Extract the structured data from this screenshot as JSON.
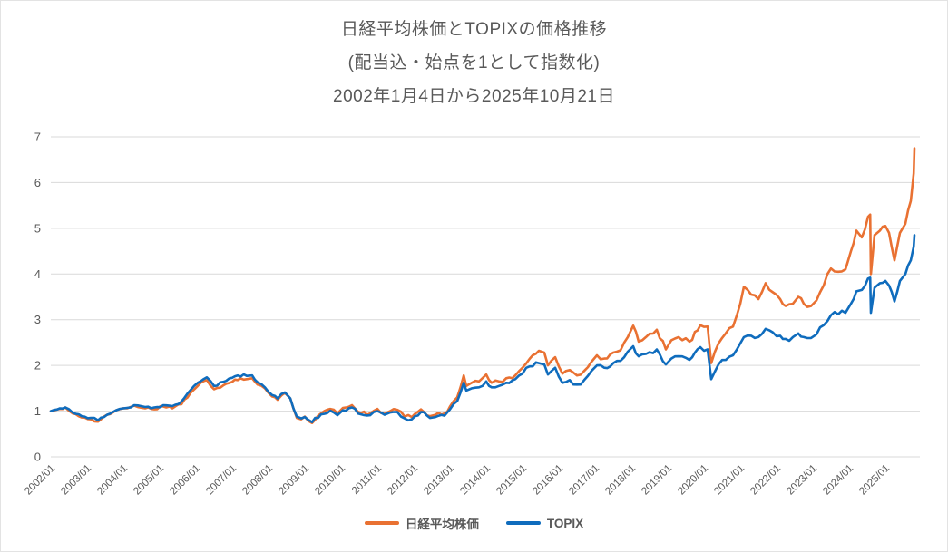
{
  "chart_data": {
    "type": "line",
    "title_lines": [
      "日経平均株価とTOPIXの価格推移",
      "(配当込・始点を1として指数化)",
      "2002年1月4日から2025年10月21日"
    ],
    "legend_position": "bottom",
    "grid": "horizontal",
    "ylim": [
      0,
      7
    ],
    "y_ticks": [
      0,
      1,
      2,
      3,
      4,
      5,
      6,
      7
    ],
    "x_tick_labels": [
      "2002/01",
      "2003/01",
      "2004/01",
      "2005/01",
      "2006/01",
      "2007/01",
      "2008/01",
      "2009/01",
      "2010/01",
      "2011/01",
      "2012/01",
      "2013/01",
      "2014/01",
      "2015/01",
      "2016/01",
      "2017/01",
      "2018/01",
      "2019/01",
      "2020/01",
      "2021/01",
      "2022/01",
      "2023/01",
      "2024/01",
      "2025/01"
    ],
    "xlim_years": [
      2002.0,
      2025.9
    ],
    "colors": {
      "nikkei": "#E97132",
      "topix": "#0F6CBD",
      "grid": "#D9D9D9",
      "text": "#595959"
    },
    "x_years": [
      2002.0,
      2002.25,
      2002.4,
      2002.6,
      2002.85,
      2003.1,
      2003.3,
      2003.55,
      2003.8,
      2004.1,
      2004.3,
      2004.6,
      2004.85,
      2005.1,
      2005.35,
      2005.6,
      2005.85,
      2006.05,
      2006.3,
      2006.5,
      2006.75,
      2007.0,
      2007.15,
      2007.4,
      2007.55,
      2007.7,
      2007.9,
      2008.1,
      2008.25,
      2008.45,
      2008.6,
      2008.78,
      2008.9,
      2009.0,
      2009.2,
      2009.45,
      2009.7,
      2009.9,
      2010.05,
      2010.3,
      2010.55,
      2010.8,
      2011.0,
      2011.2,
      2011.35,
      2011.55,
      2011.75,
      2011.95,
      2012.2,
      2012.45,
      2012.6,
      2012.85,
      2013.0,
      2013.2,
      2013.38,
      2013.45,
      2013.6,
      2013.8,
      2014.0,
      2014.15,
      2014.35,
      2014.55,
      2014.8,
      2015.0,
      2015.2,
      2015.45,
      2015.6,
      2015.7,
      2015.9,
      2016.1,
      2016.3,
      2016.5,
      2016.7,
      2016.9,
      2017.05,
      2017.25,
      2017.5,
      2017.7,
      2017.9,
      2018.05,
      2018.2,
      2018.4,
      2018.7,
      2018.95,
      2019.1,
      2019.3,
      2019.6,
      2019.9,
      2020.1,
      2020.2,
      2020.4,
      2020.6,
      2020.8,
      2021.0,
      2021.1,
      2021.3,
      2021.5,
      2021.7,
      2021.9,
      2022.1,
      2022.25,
      2022.45,
      2022.6,
      2022.75,
      2022.95,
      2023.1,
      2023.3,
      2023.5,
      2023.7,
      2023.9,
      2024.05,
      2024.2,
      2024.35,
      2024.52,
      2024.58,
      2024.6,
      2024.7,
      2024.85,
      2025.0,
      2025.1,
      2025.25,
      2025.4,
      2025.55,
      2025.7,
      2025.78,
      2025.8
    ],
    "series": [
      {
        "name": "日経平均株価",
        "color_key": "nikkei",
        "values": [
          1.0,
          1.05,
          1.08,
          0.95,
          0.86,
          0.82,
          0.77,
          0.92,
          1.02,
          1.06,
          1.12,
          1.06,
          1.04,
          1.1,
          1.06,
          1.15,
          1.4,
          1.55,
          1.68,
          1.48,
          1.56,
          1.64,
          1.68,
          1.7,
          1.72,
          1.58,
          1.5,
          1.32,
          1.25,
          1.4,
          1.28,
          0.85,
          0.82,
          0.88,
          0.74,
          0.95,
          1.05,
          0.95,
          1.07,
          1.13,
          0.96,
          0.95,
          1.05,
          0.94,
          1.0,
          1.03,
          0.88,
          0.87,
          1.04,
          0.89,
          0.92,
          0.95,
          1.1,
          1.3,
          1.78,
          1.55,
          1.62,
          1.65,
          1.8,
          1.62,
          1.65,
          1.72,
          1.78,
          1.95,
          2.15,
          2.32,
          2.28,
          2.0,
          2.18,
          1.82,
          1.9,
          1.78,
          1.88,
          2.08,
          2.22,
          2.15,
          2.28,
          2.33,
          2.62,
          2.87,
          2.52,
          2.62,
          2.78,
          2.35,
          2.55,
          2.62,
          2.52,
          2.88,
          2.85,
          2.05,
          2.48,
          2.7,
          2.85,
          3.35,
          3.72,
          3.55,
          3.45,
          3.8,
          3.6,
          3.45,
          3.3,
          3.35,
          3.5,
          3.35,
          3.3,
          3.42,
          3.75,
          4.12,
          4.05,
          4.1,
          4.5,
          4.95,
          4.8,
          5.25,
          5.3,
          4.0,
          4.85,
          4.95,
          5.05,
          4.9,
          4.3,
          4.9,
          5.1,
          5.6,
          6.2,
          6.75
        ]
      },
      {
        "name": "TOPIX",
        "color_key": "topix",
        "values": [
          1.0,
          1.06,
          1.08,
          0.97,
          0.89,
          0.85,
          0.8,
          0.92,
          1.02,
          1.07,
          1.13,
          1.09,
          1.08,
          1.13,
          1.11,
          1.21,
          1.46,
          1.62,
          1.74,
          1.55,
          1.64,
          1.73,
          1.78,
          1.77,
          1.78,
          1.63,
          1.52,
          1.35,
          1.28,
          1.41,
          1.28,
          0.88,
          0.84,
          0.87,
          0.76,
          0.93,
          1.01,
          0.91,
          1.02,
          1.08,
          0.93,
          0.91,
          1.0,
          0.92,
          0.97,
          0.98,
          0.84,
          0.82,
          0.98,
          0.85,
          0.87,
          0.9,
          1.04,
          1.22,
          1.62,
          1.45,
          1.5,
          1.52,
          1.65,
          1.52,
          1.55,
          1.62,
          1.7,
          1.82,
          1.98,
          2.05,
          2.02,
          1.8,
          1.95,
          1.62,
          1.68,
          1.58,
          1.68,
          1.88,
          2.0,
          1.95,
          2.05,
          2.1,
          2.3,
          2.42,
          2.2,
          2.25,
          2.35,
          2.02,
          2.15,
          2.2,
          2.12,
          2.4,
          2.35,
          1.7,
          2.02,
          2.12,
          2.22,
          2.48,
          2.62,
          2.65,
          2.62,
          2.8,
          2.72,
          2.65,
          2.58,
          2.62,
          2.7,
          2.62,
          2.6,
          2.68,
          2.88,
          3.1,
          3.12,
          3.15,
          3.35,
          3.62,
          3.65,
          3.9,
          3.92,
          3.15,
          3.7,
          3.8,
          3.85,
          3.75,
          3.4,
          3.85,
          4.0,
          4.3,
          4.6,
          4.85
        ]
      }
    ]
  }
}
